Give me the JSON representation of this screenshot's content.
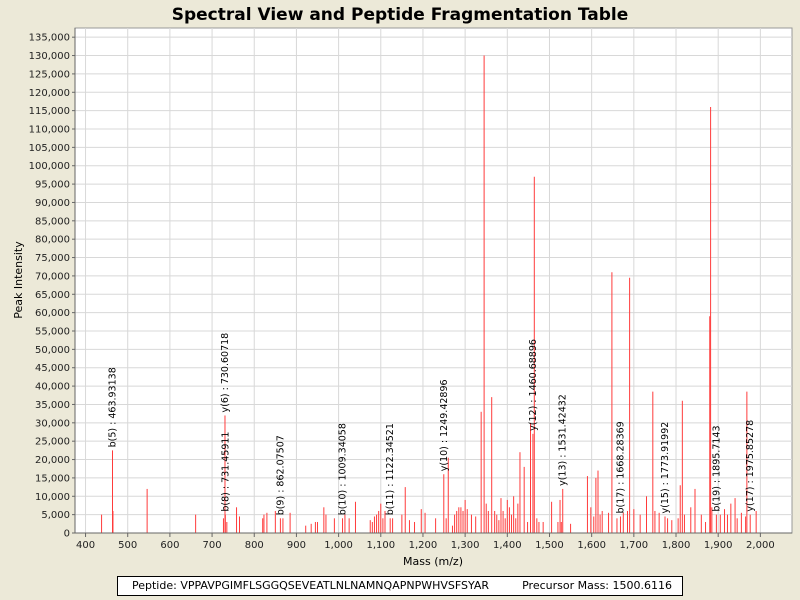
{
  "chart_data": {
    "type": "bar",
    "title": "Spectral View and Peptide Fragmentation Table",
    "xlabel": "Mass (m/z)",
    "ylabel": "Peak Intensity",
    "xlim": [
      375,
      2075
    ],
    "ylim": [
      0,
      137500
    ],
    "xticks": [
      400,
      500,
      600,
      700,
      800,
      900,
      1000,
      1100,
      1200,
      1300,
      1400,
      1500,
      1600,
      1700,
      1800,
      1900,
      2000
    ],
    "xtick_labels": [
      "400",
      "500",
      "600",
      "700",
      "800",
      "900",
      "1,000",
      "1,100",
      "1,200",
      "1,300",
      "1,400",
      "1,500",
      "1,600",
      "1,700",
      "1,800",
      "1,900",
      "2,000"
    ],
    "yticks": [
      0,
      5000,
      10000,
      15000,
      20000,
      25000,
      30000,
      35000,
      40000,
      45000,
      50000,
      55000,
      60000,
      65000,
      70000,
      75000,
      80000,
      85000,
      90000,
      95000,
      100000,
      105000,
      110000,
      115000,
      120000,
      125000,
      130000,
      135000
    ],
    "ytick_labels": [
      "0",
      "5,000",
      "10,000",
      "15,000",
      "20,000",
      "25,000",
      "30,000",
      "35,000",
      "40,000",
      "45,000",
      "50,000",
      "55,000",
      "60,000",
      "65,000",
      "70,000",
      "75,000",
      "80,000",
      "85,000",
      "90,000",
      "95,000",
      "100,000",
      "105,000",
      "110,000",
      "115,000",
      "120,000",
      "125,000",
      "130,000",
      "135,000"
    ],
    "grid": true,
    "series_color": "#ff3b3b",
    "peaks": [
      [
        438,
        5000
      ],
      [
        463.9,
        22500
      ],
      [
        465,
        6000
      ],
      [
        546,
        12000
      ],
      [
        661,
        5000
      ],
      [
        727,
        4000
      ],
      [
        730.6,
        32000
      ],
      [
        731.5,
        5000
      ],
      [
        735,
        3000
      ],
      [
        758,
        7000
      ],
      [
        765,
        4500
      ],
      [
        820,
        4000
      ],
      [
        823,
        5000
      ],
      [
        830,
        5500
      ],
      [
        850,
        6000
      ],
      [
        862,
        4000
      ],
      [
        868,
        4000
      ],
      [
        885,
        5500
      ],
      [
        922,
        2000
      ],
      [
        935,
        2500
      ],
      [
        945,
        3000
      ],
      [
        950,
        3000
      ],
      [
        965,
        7000
      ],
      [
        970,
        5000
      ],
      [
        990,
        4000
      ],
      [
        1009.3,
        4000
      ],
      [
        1015,
        5000
      ],
      [
        1025,
        4000
      ],
      [
        1040,
        8500
      ],
      [
        1075,
        3500
      ],
      [
        1080,
        3000
      ],
      [
        1085,
        4500
      ],
      [
        1090,
        5000
      ],
      [
        1095,
        6000
      ],
      [
        1100,
        8000
      ],
      [
        1105,
        4000
      ],
      [
        1110,
        6000
      ],
      [
        1122.3,
        4000
      ],
      [
        1128,
        4000
      ],
      [
        1150,
        5000
      ],
      [
        1158,
        12500
      ],
      [
        1168,
        3500
      ],
      [
        1180,
        3000
      ],
      [
        1196,
        6500
      ],
      [
        1205,
        5500
      ],
      [
        1230,
        4000
      ],
      [
        1249.4,
        16000
      ],
      [
        1255,
        4000
      ],
      [
        1260,
        20500
      ],
      [
        1270,
        2000
      ],
      [
        1275,
        5000
      ],
      [
        1280,
        6000
      ],
      [
        1285,
        7000
      ],
      [
        1290,
        7000
      ],
      [
        1295,
        6000
      ],
      [
        1300,
        9000
      ],
      [
        1305,
        6500
      ],
      [
        1315,
        5000
      ],
      [
        1325,
        4500
      ],
      [
        1338,
        33000
      ],
      [
        1345,
        130000
      ],
      [
        1350,
        8000
      ],
      [
        1355,
        6000
      ],
      [
        1363,
        37000
      ],
      [
        1370,
        6000
      ],
      [
        1375,
        5000
      ],
      [
        1380,
        3500
      ],
      [
        1385,
        9500
      ],
      [
        1390,
        6000
      ],
      [
        1395,
        4000
      ],
      [
        1400,
        9000
      ],
      [
        1405,
        7000
      ],
      [
        1410,
        5000
      ],
      [
        1415,
        10000
      ],
      [
        1420,
        4000
      ],
      [
        1425,
        8000
      ],
      [
        1430,
        22000
      ],
      [
        1440,
        18000
      ],
      [
        1448,
        3000
      ],
      [
        1455,
        30000
      ],
      [
        1460.7,
        27000
      ],
      [
        1464,
        97000
      ],
      [
        1470,
        4000
      ],
      [
        1475,
        3000
      ],
      [
        1485,
        3000
      ],
      [
        1505,
        8500
      ],
      [
        1520,
        3000
      ],
      [
        1525,
        9000
      ],
      [
        1528,
        3000
      ],
      [
        1531.4,
        12000
      ],
      [
        1550,
        2500
      ],
      [
        1590,
        15500
      ],
      [
        1598,
        7000
      ],
      [
        1605,
        4500
      ],
      [
        1610,
        15000
      ],
      [
        1615,
        17000
      ],
      [
        1620,
        5000
      ],
      [
        1625,
        6000
      ],
      [
        1640,
        5500
      ],
      [
        1648,
        71000
      ],
      [
        1660,
        4000
      ],
      [
        1668.3,
        4500
      ],
      [
        1675,
        5500
      ],
      [
        1685,
        6000
      ],
      [
        1690,
        69500
      ],
      [
        1700,
        6500
      ],
      [
        1715,
        5000
      ],
      [
        1730,
        10000
      ],
      [
        1745,
        38500
      ],
      [
        1750,
        6000
      ],
      [
        1760,
        5500
      ],
      [
        1773.9,
        4500
      ],
      [
        1780,
        4000
      ],
      [
        1790,
        3500
      ],
      [
        1805,
        4000
      ],
      [
        1810,
        13000
      ],
      [
        1815,
        36000
      ],
      [
        1820,
        5000
      ],
      [
        1835,
        7000
      ],
      [
        1845,
        12000
      ],
      [
        1860,
        5000
      ],
      [
        1870,
        3000
      ],
      [
        1880,
        59000
      ],
      [
        1882,
        116000
      ],
      [
        1885,
        7000
      ],
      [
        1895.7,
        5000
      ],
      [
        1905,
        5000
      ],
      [
        1915,
        6500
      ],
      [
        1922,
        5000
      ],
      [
        1930,
        8000
      ],
      [
        1940,
        9500
      ],
      [
        1945,
        4000
      ],
      [
        1955,
        5500
      ],
      [
        1965,
        4500
      ],
      [
        1968,
        38500
      ],
      [
        1975.9,
        5000
      ],
      [
        1990,
        6000
      ]
    ],
    "annotations": [
      {
        "text": "b(5) : 463.93138",
        "x": 463.9,
        "y": 22500
      },
      {
        "text": "y(6) : 730.60718",
        "x": 730.6,
        "y": 32000
      },
      {
        "text": "b(8) : 731.45911",
        "x": 731.5,
        "y": 5000
      },
      {
        "text": "b(9) : 862.07507",
        "x": 862,
        "y": 4000
      },
      {
        "text": "b(10) : 1009.34058",
        "x": 1009.3,
        "y": 4000
      },
      {
        "text": "b(11) : 1122.34521",
        "x": 1122.3,
        "y": 4000
      },
      {
        "text": "y(10) : 1249.42896",
        "x": 1249.4,
        "y": 16000
      },
      {
        "text": "y(12) : 1460.68896",
        "x": 1460.7,
        "y": 27000
      },
      {
        "text": "y(13) : 1531.42432",
        "x": 1531.4,
        "y": 12000
      },
      {
        "text": "b(17) : 1668.28369",
        "x": 1668.3,
        "y": 4500
      },
      {
        "text": "y(15) : 1773.91992",
        "x": 1773.9,
        "y": 4500
      },
      {
        "text": "b(19) : 1895.7143",
        "x": 1895.7,
        "y": 5000
      },
      {
        "text": "y(17) : 1975.85278",
        "x": 1975.9,
        "y": 5000
      }
    ]
  },
  "footer": {
    "peptide": "Peptide: VPPAVPGIMFLSGGQSEVEATLNLNAMNQAPNPWHVSFSYAR",
    "precursor": "Precursor Mass: 1500.6116"
  }
}
